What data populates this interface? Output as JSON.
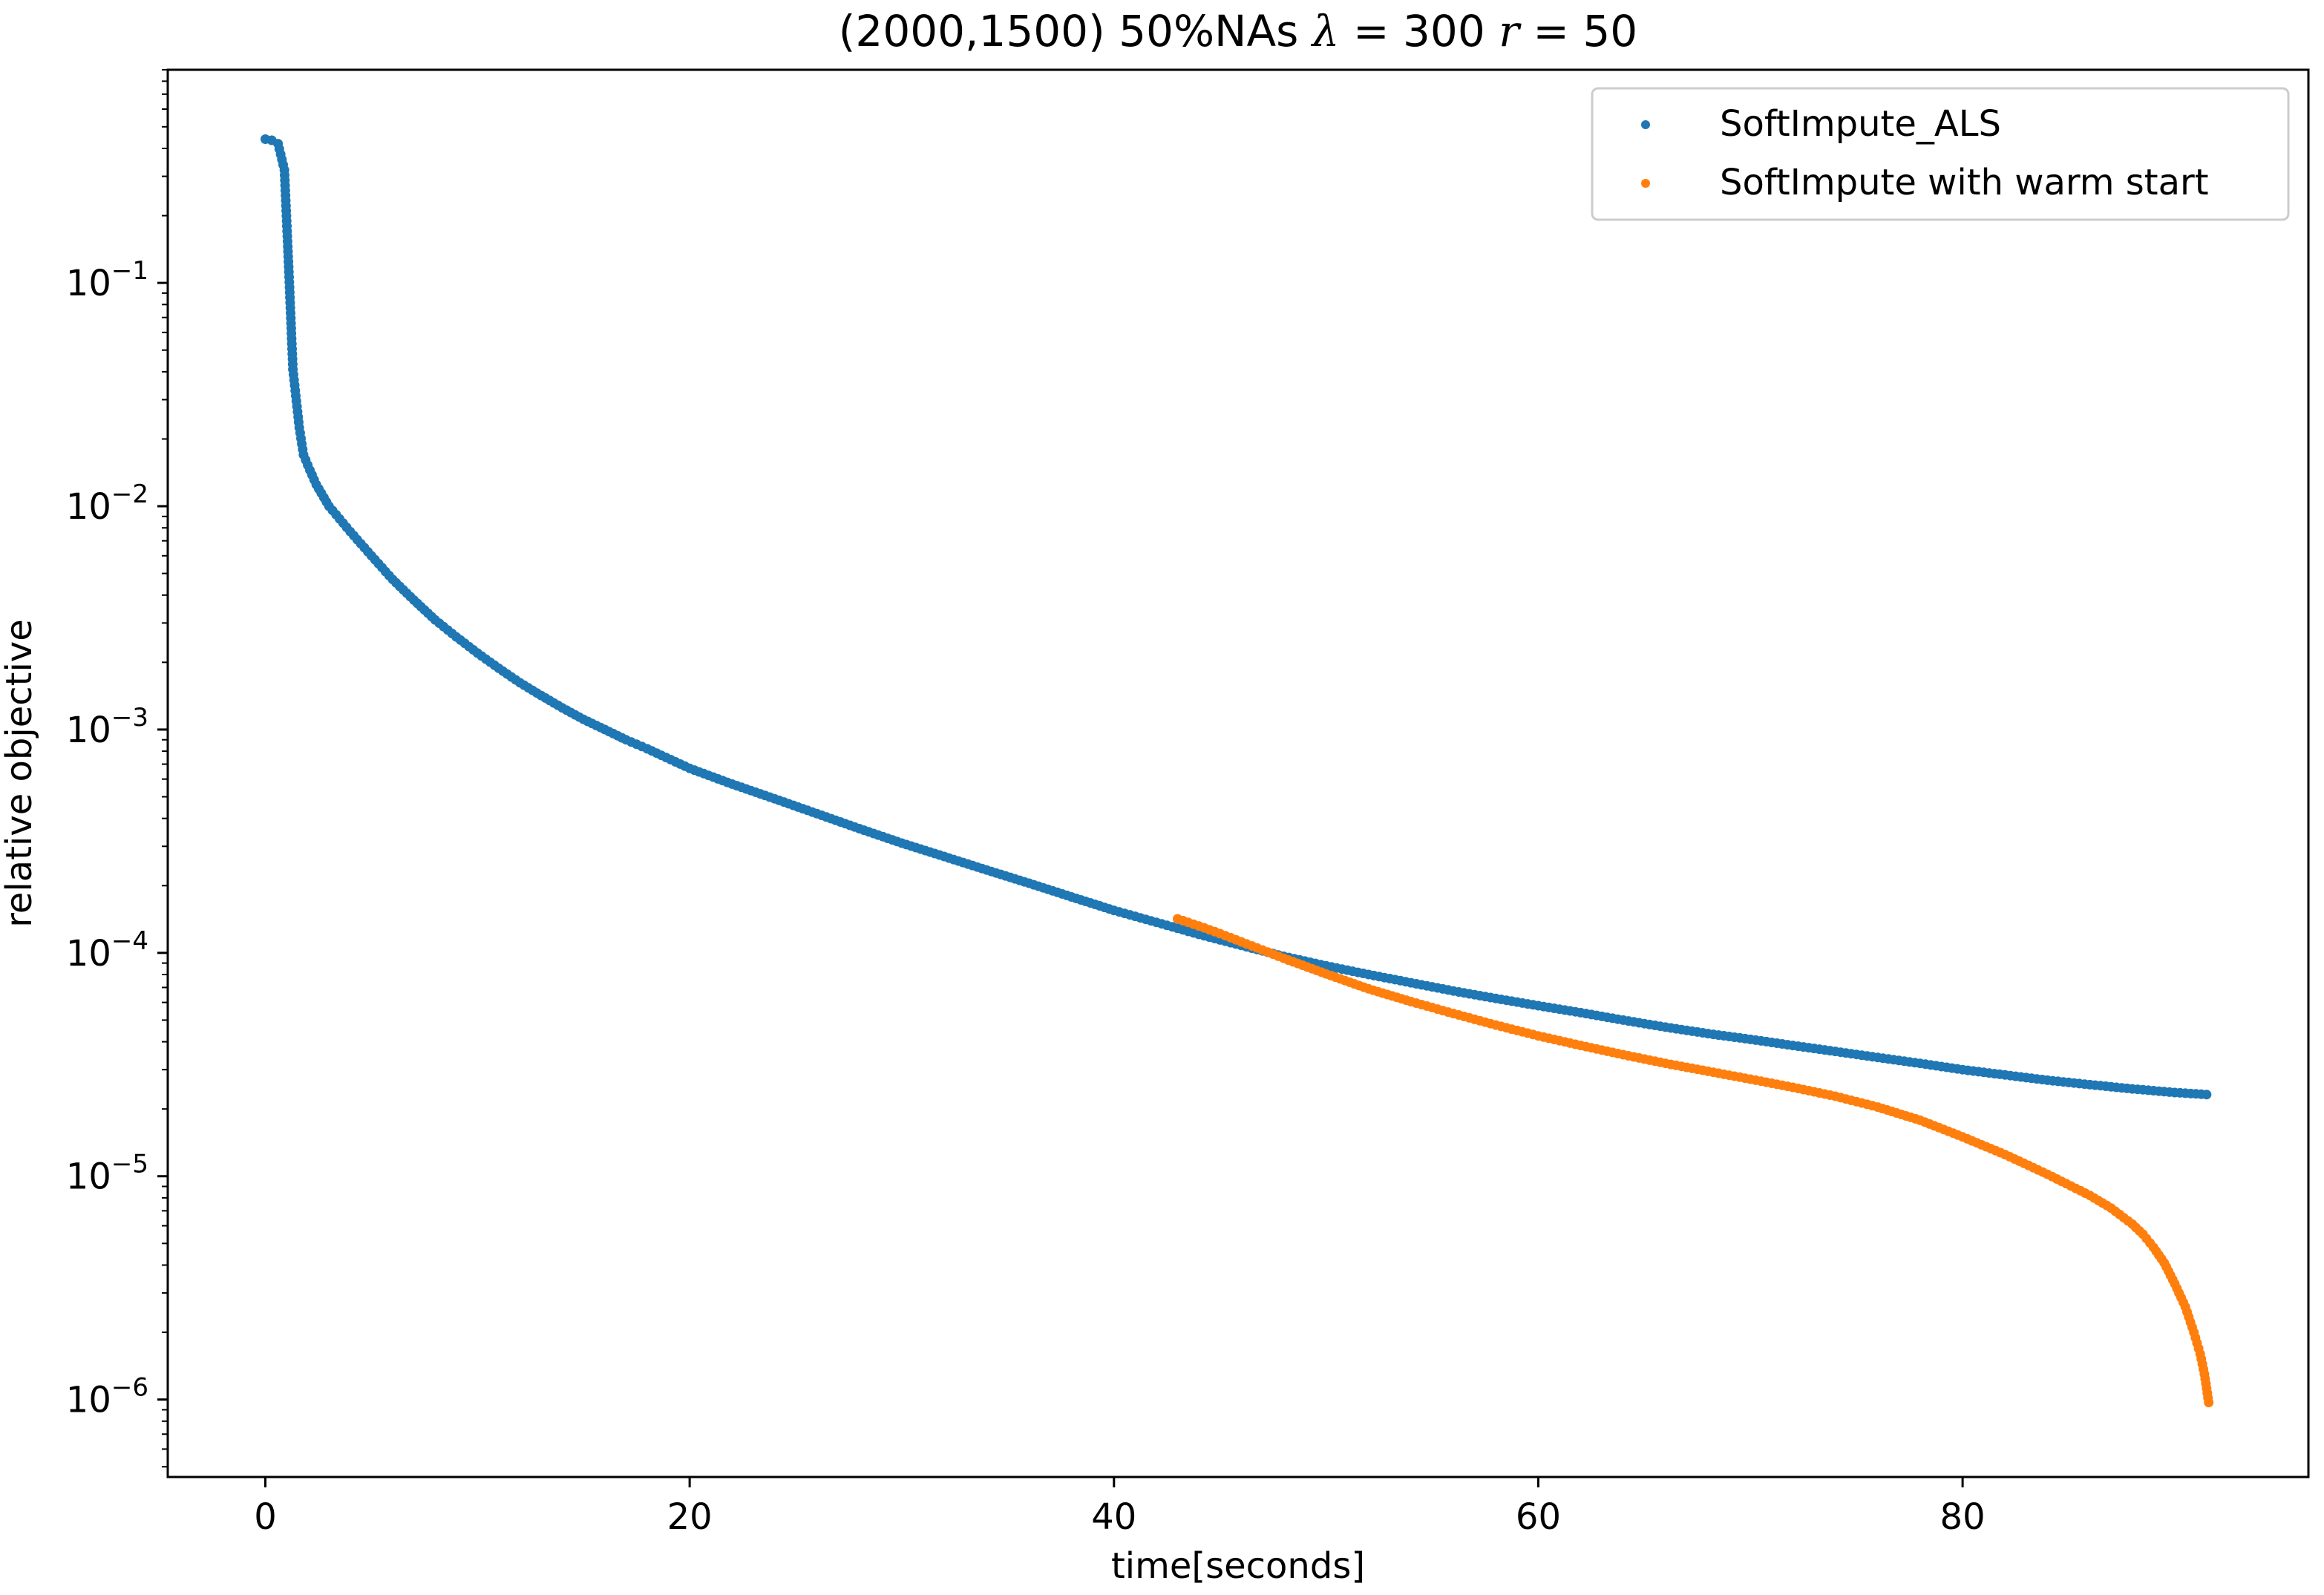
{
  "chart_data": {
    "type": "scatter",
    "title": {
      "prefix": "(2000,1500) 50%NAs ",
      "lambda_symbol": "λ",
      "eq1": " = 300 ",
      "r_symbol": "r",
      "eq2": " = 50"
    },
    "xlabel": "time[seconds]",
    "ylabel": "relative objective",
    "xlim": [
      -4.6,
      96.3
    ],
    "ylim": [
      4.5e-07,
      0.9
    ],
    "yscale": "log",
    "grid": false,
    "legend_position": "top-right",
    "x_ticks": [
      {
        "value": 0,
        "label": "0"
      },
      {
        "value": 20,
        "label": "20"
      },
      {
        "value": 40,
        "label": "40"
      },
      {
        "value": 60,
        "label": "60"
      },
      {
        "value": 80,
        "label": "80"
      }
    ],
    "y_ticks": [
      {
        "value": 0.1,
        "base": "10",
        "exp": "−1"
      },
      {
        "value": 0.01,
        "base": "10",
        "exp": "−2"
      },
      {
        "value": 0.001,
        "base": "10",
        "exp": "−3"
      },
      {
        "value": 0.0001,
        "base": "10",
        "exp": "−4"
      },
      {
        "value": 1e-05,
        "base": "10",
        "exp": "−5"
      },
      {
        "value": 1e-06,
        "base": "10",
        "exp": "−6"
      }
    ],
    "series": [
      {
        "name": "SoftImpute_ALS",
        "color": "#1f77b4",
        "points": [
          [
            0.0,
            0.44
          ],
          [
            0.3,
            0.435
          ],
          [
            0.6,
            0.42
          ],
          [
            0.9,
            0.32
          ],
          [
            1.1,
            0.118
          ],
          [
            1.3,
            0.041
          ],
          [
            1.6,
            0.0225
          ],
          [
            1.8,
            0.017
          ],
          [
            2.1,
            0.0145
          ],
          [
            2.4,
            0.0125
          ],
          [
            3.0,
            0.01
          ],
          [
            4.0,
            0.0077
          ],
          [
            5.0,
            0.006
          ],
          [
            6.0,
            0.0047
          ],
          [
            7.0,
            0.0038
          ],
          [
            8.0,
            0.0031
          ],
          [
            9.0,
            0.0026
          ],
          [
            10.0,
            0.0022
          ],
          [
            11.0,
            0.00188
          ],
          [
            12.0,
            0.00162
          ],
          [
            13.0,
            0.00142
          ],
          [
            14.0,
            0.00125
          ],
          [
            15.0,
            0.00111
          ],
          [
            16.0,
            0.001
          ],
          [
            17.0,
            0.0009
          ],
          [
            18.0,
            0.00082
          ],
          [
            20.0,
            0.00067
          ],
          [
            22.0,
            0.00057
          ],
          [
            24.0,
            0.00049
          ],
          [
            26.0,
            0.00042
          ],
          [
            28.0,
            0.00036
          ],
          [
            30.0,
            0.00031
          ],
          [
            32.0,
            0.00027
          ],
          [
            34.0,
            0.000235
          ],
          [
            36.0,
            0.000205
          ],
          [
            38.0,
            0.000178
          ],
          [
            40.0,
            0.000155
          ],
          [
            42.0,
            0.000137
          ],
          [
            44.0,
            0.000121
          ],
          [
            46.0,
            0.000108
          ],
          [
            48.0,
            9.65e-05
          ],
          [
            50.0,
            8.75e-05
          ],
          [
            52.0,
            8e-05
          ],
          [
            54.0,
            7.35e-05
          ],
          [
            56.0,
            6.75e-05
          ],
          [
            58.0,
            6.25e-05
          ],
          [
            60.0,
            5.8e-05
          ],
          [
            62.0,
            5.4e-05
          ],
          [
            64.0,
            5e-05
          ],
          [
            66.0,
            4.65e-05
          ],
          [
            68.0,
            4.35e-05
          ],
          [
            70.0,
            4.1e-05
          ],
          [
            72.0,
            3.85e-05
          ],
          [
            74.0,
            3.62e-05
          ],
          [
            76.0,
            3.4e-05
          ],
          [
            78.0,
            3.2e-05
          ],
          [
            80.0,
            3e-05
          ],
          [
            82.0,
            2.84e-05
          ],
          [
            84.0,
            2.69e-05
          ],
          [
            86.0,
            2.57e-05
          ],
          [
            88.0,
            2.46e-05
          ],
          [
            90.0,
            2.37e-05
          ],
          [
            91.5,
            2.32e-05
          ]
        ]
      },
      {
        "name": "SoftImpute with warm start",
        "color": "#ff7f0e",
        "points": [
          [
            43.0,
            0.000142
          ],
          [
            44.0,
            0.000132
          ],
          [
            45.0,
            0.000122
          ],
          [
            46.0,
            0.000112
          ],
          [
            47.0,
            0.000103
          ],
          [
            48.0,
            9.45e-05
          ],
          [
            50.0,
            8.05e-05
          ],
          [
            52.0,
            6.9e-05
          ],
          [
            54.0,
            6.05e-05
          ],
          [
            56.0,
            5.35e-05
          ],
          [
            58.0,
            4.75e-05
          ],
          [
            60.0,
            4.25e-05
          ],
          [
            62.0,
            3.85e-05
          ],
          [
            64.0,
            3.5e-05
          ],
          [
            66.0,
            3.2e-05
          ],
          [
            68.0,
            2.95e-05
          ],
          [
            70.0,
            2.72e-05
          ],
          [
            72.0,
            2.5e-05
          ],
          [
            74.0,
            2.28e-05
          ],
          [
            76.0,
            2.04e-05
          ],
          [
            78.0,
            1.78e-05
          ],
          [
            80.0,
            1.5e-05
          ],
          [
            82.0,
            1.25e-05
          ],
          [
            84.0,
            1.02e-05
          ],
          [
            86.0,
            8.2e-06
          ],
          [
            87.0,
            7.2e-06
          ],
          [
            88.0,
            6.1e-06
          ],
          [
            88.5,
            5.5e-06
          ],
          [
            89.0,
            4.8e-06
          ],
          [
            89.5,
            4.1e-06
          ],
          [
            90.0,
            3.3e-06
          ],
          [
            90.5,
            2.6e-06
          ],
          [
            90.9,
            2e-06
          ],
          [
            91.2,
            1.6e-06
          ],
          [
            91.4,
            1.3e-06
          ],
          [
            91.6,
            9.7e-07
          ]
        ]
      }
    ]
  }
}
